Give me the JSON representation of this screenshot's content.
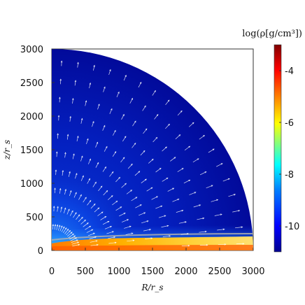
{
  "chart_data": {
    "type": "heatmap",
    "title": "",
    "xlabel": "R/r_s",
    "ylabel": "z/r_s",
    "xlim": [
      0,
      3000
    ],
    "ylim": [
      0,
      3000
    ],
    "x_ticks": [
      "0",
      "500",
      "1000",
      "1500",
      "2000",
      "2500",
      "3000"
    ],
    "y_ticks": [
      "0",
      "500",
      "1000",
      "1500",
      "2000",
      "2500",
      "3000"
    ],
    "domain_shape": "quarter-disk",
    "domain_radius": 3000,
    "vector_field": "velocity arrows",
    "colorbar": {
      "label": "log(ρ[g/cm³])",
      "range": [
        -11,
        -3
      ],
      "ticks": [
        "-4",
        "-6",
        "-8",
        "-10"
      ],
      "tick_values": [
        -4,
        -6,
        -8,
        -10
      ],
      "colormap": [
        "#00008f",
        "#0000ff",
        "#0080ff",
        "#00ffff",
        "#80ff80",
        "#ffff00",
        "#ff8000",
        "#ff0000",
        "#800000"
      ]
    }
  }
}
